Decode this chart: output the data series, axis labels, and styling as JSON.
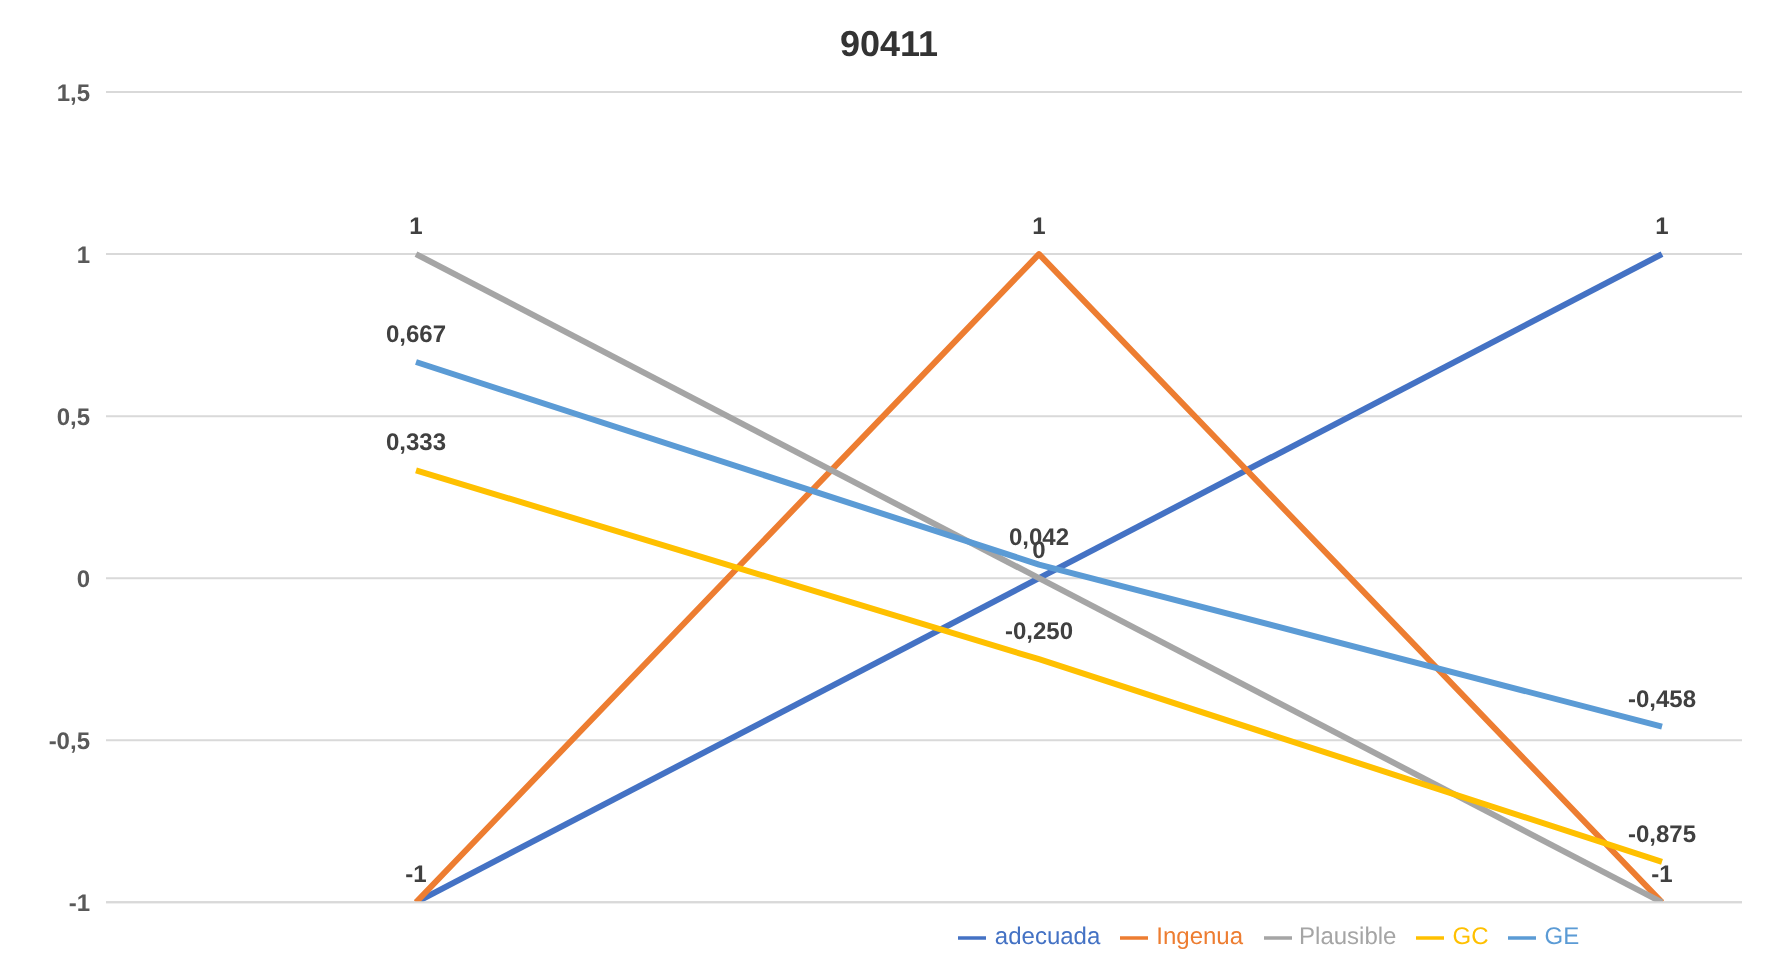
{
  "chart_data": {
    "type": "line",
    "title": "90411",
    "categories": [
      null,
      null,
      null
    ],
    "series": [
      {
        "name": "adecuada",
        "color": "#4472c4",
        "values": [
          -1,
          0,
          1
        ],
        "value_labels": [
          "-1",
          "0",
          "1"
        ]
      },
      {
        "name": "Ingenua",
        "color": "#ed7d31",
        "values": [
          -1,
          1,
          -1
        ],
        "value_labels": [
          null,
          "1",
          null
        ]
      },
      {
        "name": "Plausible",
        "color": "#a5a5a5",
        "values": [
          1,
          0,
          -1
        ],
        "value_labels": [
          "1",
          null,
          "-1"
        ]
      },
      {
        "name": "GC",
        "color": "#ffc000",
        "values": [
          0.333,
          -0.25,
          -0.875
        ],
        "value_labels": [
          "0,333",
          "-0,250",
          "-0,875"
        ]
      },
      {
        "name": "GE",
        "color": "#5b9bd5",
        "values": [
          0.667,
          0.042,
          -0.458
        ],
        "value_labels": [
          "0,667",
          "0,042",
          "-0,458"
        ]
      }
    ],
    "ylim": [
      -1,
      1.5
    ],
    "yticks": [
      -1,
      {
        "value": -0.5,
        "label": "-0,5"
      },
      0,
      {
        "value": 0.5,
        "label": "0,5"
      },
      1,
      {
        "value": 1.5,
        "label": "1,5"
      }
    ],
    "grid": "y",
    "legend": "bottom",
    "marker": "none",
    "line_style": "solid"
  }
}
